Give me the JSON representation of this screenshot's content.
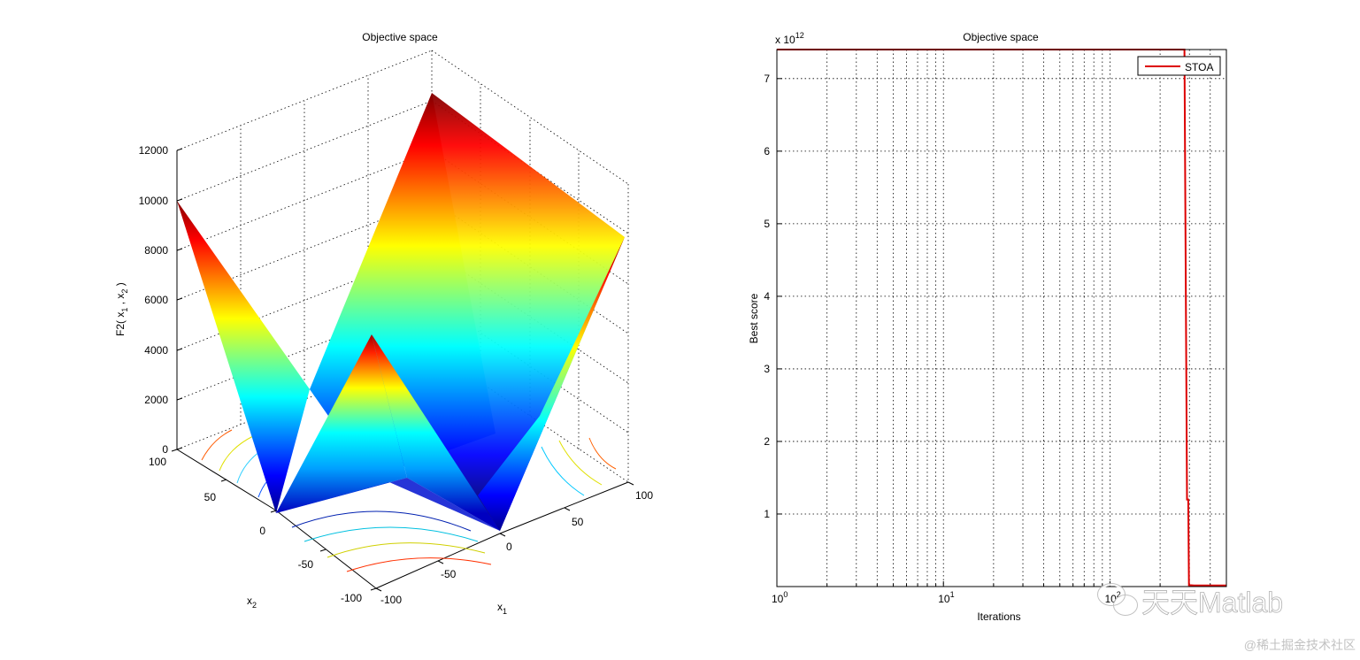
{
  "chart_data": [
    {
      "type": "surface3d",
      "title": "Objective space",
      "zlabel_prefix": "F2( x",
      "zlabel_sub1": "1",
      "zlabel_mid": " , x",
      "zlabel_sub2": "2",
      "zlabel_suffix": " )",
      "xlabel_base": "x",
      "xlabel_sub": "1",
      "ylabel_base": "x",
      "ylabel_sub": "2",
      "z_ticks": [
        "0",
        "2000",
        "4000",
        "6000",
        "8000",
        "10000",
        "12000"
      ],
      "x1_ticks": [
        "-100",
        "-50",
        "0",
        "50",
        "100"
      ],
      "x2_ticks": [
        "-100",
        "-50",
        "0",
        "50",
        "100"
      ],
      "x1_range": [
        -100,
        100
      ],
      "x2_range": [
        -100,
        100
      ],
      "z_range": [
        0,
        12000
      ],
      "grid": true,
      "colormap": "jet"
    },
    {
      "type": "line",
      "title": "Objective space",
      "xlabel": "Iterations",
      "ylabel": "Best score",
      "xscale": "log",
      "x_ticks": [
        {
          "base": "10",
          "exp": "0"
        },
        {
          "base": "10",
          "exp": "1"
        },
        {
          "base": "10",
          "exp": "2"
        }
      ],
      "y_ticks": [
        "1",
        "2",
        "3",
        "4",
        "5",
        "6",
        "7"
      ],
      "y_exponent_base": "x 10",
      "y_exponent_power": "12",
      "xlim": [
        1,
        500
      ],
      "ylim": [
        0,
        7.4
      ],
      "grid": true,
      "legend_position": "top-right",
      "series": [
        {
          "name": "STOA",
          "color": "#dd0000",
          "x": [
            1,
            280,
            290,
            295,
            298,
            300,
            320,
            350,
            400,
            450,
            500
          ],
          "y": [
            7.4,
            7.4,
            1.2,
            1.2,
            0.02,
            0.02,
            0.015,
            0.015,
            0.015,
            0.015,
            0.015
          ]
        }
      ]
    }
  ],
  "watermark": {
    "text": "天天Matlab",
    "footer": "@稀土掘金技术社区"
  }
}
